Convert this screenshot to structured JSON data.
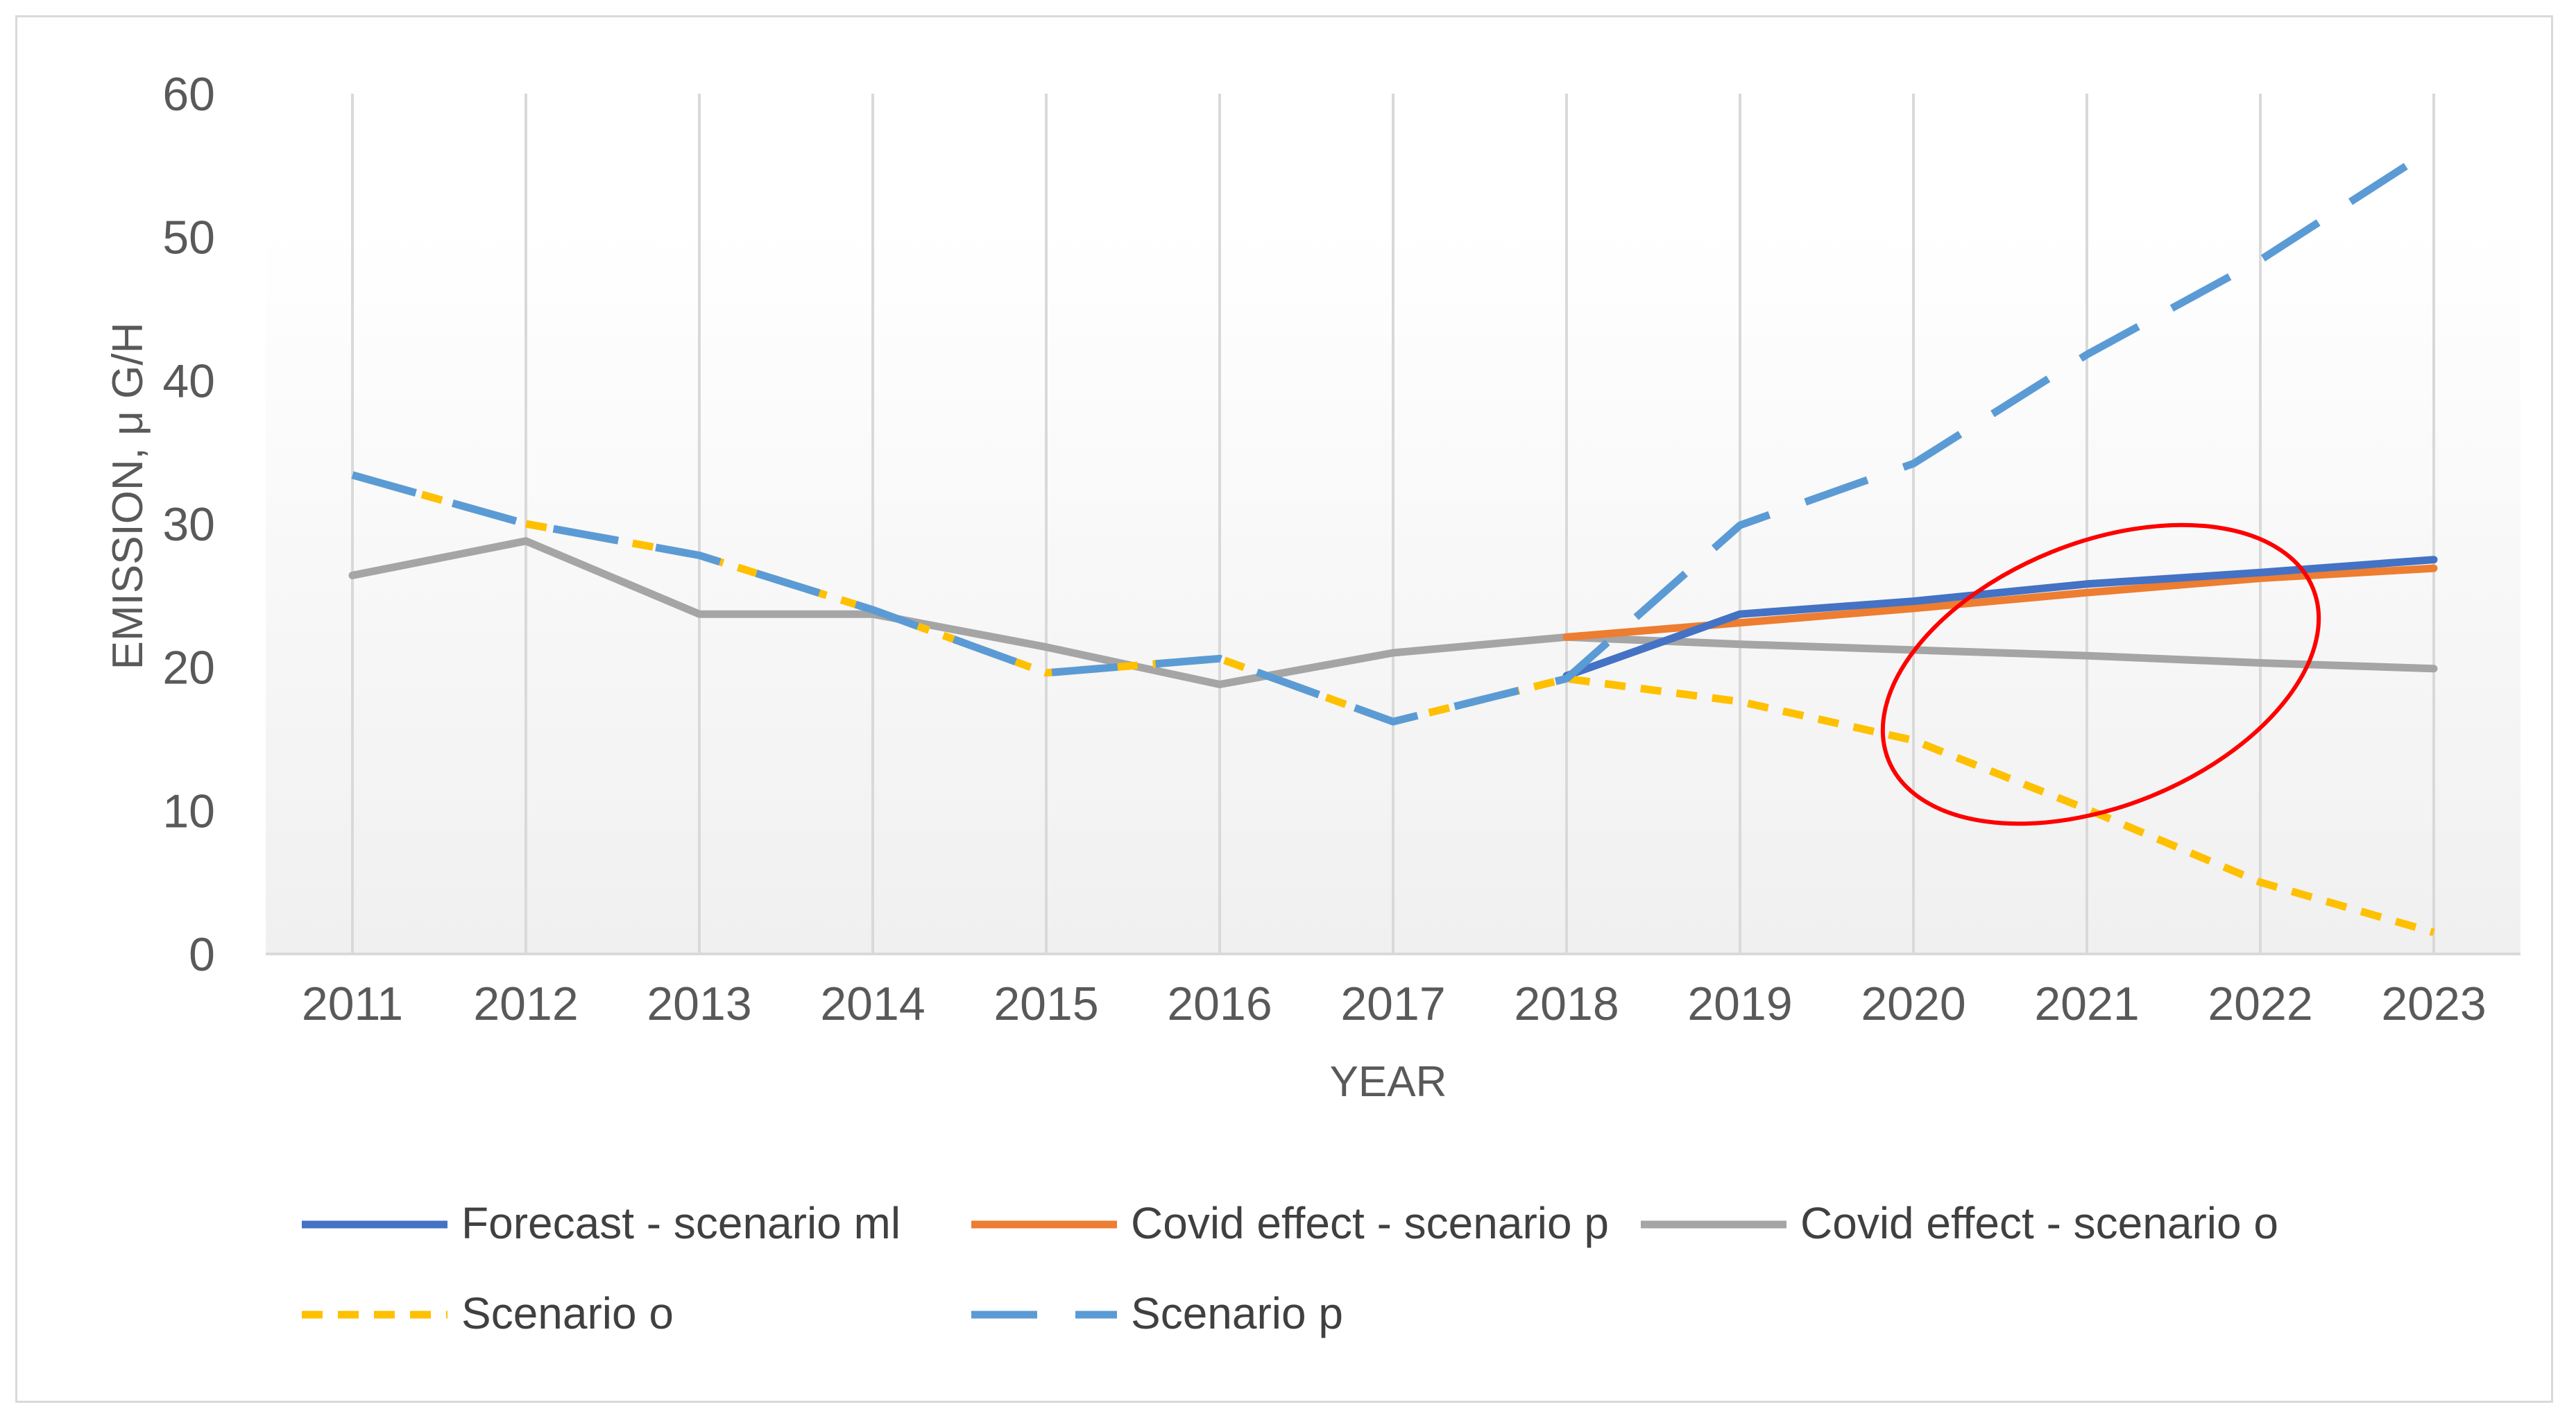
{
  "chart_data": {
    "type": "line",
    "title": "",
    "xlabel": "YEAR",
    "ylabel": "EMISSION, μ G/H",
    "ylim": [
      0,
      60
    ],
    "yticks": [
      0,
      10,
      20,
      30,
      40,
      50,
      60
    ],
    "grid": "vertical",
    "legend_position": "bottom",
    "categories": [
      "2011",
      "2012",
      "2013",
      "2014",
      "2015",
      "2016",
      "2017",
      "2018",
      "2019",
      "2020",
      "2021",
      "2022",
      "2023"
    ],
    "series": [
      {
        "name": "Covid effect - scenario o",
        "color": "#a5a5a5",
        "dash": "solid",
        "values": [
          26.4,
          28.8,
          23.7,
          23.7,
          21.4,
          18.8,
          21.0,
          22.1,
          21.6,
          21.2,
          20.8,
          20.3,
          19.9
        ]
      },
      {
        "name": "Covid effect - scenario p",
        "color": "#ed7d31",
        "dash": "solid",
        "values": [
          null,
          null,
          null,
          null,
          null,
          null,
          null,
          22.1,
          23.1,
          24.1,
          25.2,
          26.2,
          26.9
        ]
      },
      {
        "name": "Forecast - scenario ml",
        "color": "#4472c4",
        "dash": "solid",
        "values": [
          null,
          null,
          null,
          null,
          null,
          null,
          null,
          19.4,
          23.7,
          24.6,
          25.8,
          26.6,
          27.5
        ]
      },
      {
        "name": "Scenario o",
        "color": "#ffc000",
        "dash": "short",
        "values": [
          33.4,
          30.0,
          27.8,
          24.0,
          19.6,
          20.6,
          16.2,
          19.2,
          17.6,
          14.9,
          10.1,
          5.0,
          1.5
        ]
      },
      {
        "name": "Scenario p",
        "color": "#5b9bd5",
        "dash": "long",
        "values": [
          33.4,
          30.0,
          27.8,
          24.0,
          19.6,
          20.6,
          16.2,
          19.2,
          29.9,
          34.2,
          41.8,
          48.4,
          56.2
        ]
      }
    ],
    "annotations": [
      {
        "type": "ellipse",
        "color": "#ff0000",
        "description": "red ellipse highlighting scenario divergence, 2020–2022"
      }
    ]
  },
  "legend": {
    "items": [
      {
        "label": "Forecast - scenario ml",
        "color": "#4472c4",
        "dash": "solid"
      },
      {
        "label": "Covid effect - scenario p",
        "color": "#ed7d31",
        "dash": "solid"
      },
      {
        "label": "Covid effect - scenario o",
        "color": "#a5a5a5",
        "dash": "solid"
      },
      {
        "label": "Scenario o",
        "color": "#ffc000",
        "dash": "short"
      },
      {
        "label": "Scenario p",
        "color": "#5b9bd5",
        "dash": "long"
      }
    ]
  }
}
